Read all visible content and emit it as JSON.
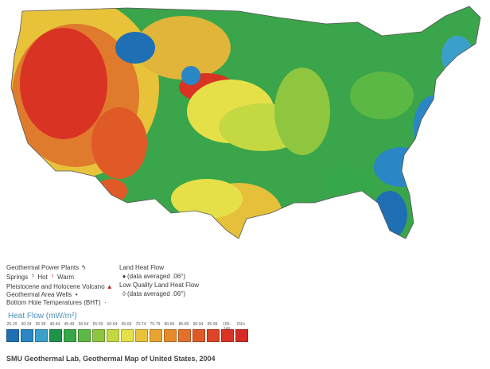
{
  "legend": {
    "power_plants": "Geothermal Power Plants",
    "springs": "Springs",
    "hot": "Hot",
    "warm": "Warm",
    "volcano": "Pleistocene and Holocene Volcano",
    "area_wells": "Geothermal Area Wells",
    "bht": "Bottom Hole Temperatures (BHT)",
    "land_heat_flow": "Land Heat Flow",
    "lhf_note": "(data averaged .06°)",
    "low_quality": "Low Quality Land Heat Flow",
    "lq_note": "(data averaged .06°)"
  },
  "heat_flow": {
    "title": "Heat Flow (mW/m²)",
    "ranges": [
      "25-29",
      "30-34",
      "35-39",
      "40-44",
      "45-49",
      "50-54",
      "55-59",
      "60-64",
      "65-69",
      "70-74",
      "75-79",
      "80-84",
      "85-89",
      "90-94",
      "95-99",
      "100-149",
      "150+"
    ],
    "colors": [
      "#1f6fb5",
      "#2a86c4",
      "#3aa0c9",
      "#20934a",
      "#36a84a",
      "#5cb845",
      "#8ec63f",
      "#c4d842",
      "#e6e048",
      "#e9c23a",
      "#e8a330",
      "#e68a2c",
      "#e3702a",
      "#e05a28",
      "#dd4426",
      "#d93324",
      "#d62a24"
    ]
  },
  "credit": "SMU Geothermal Lab, Geothermal Map of United States, 2004"
}
